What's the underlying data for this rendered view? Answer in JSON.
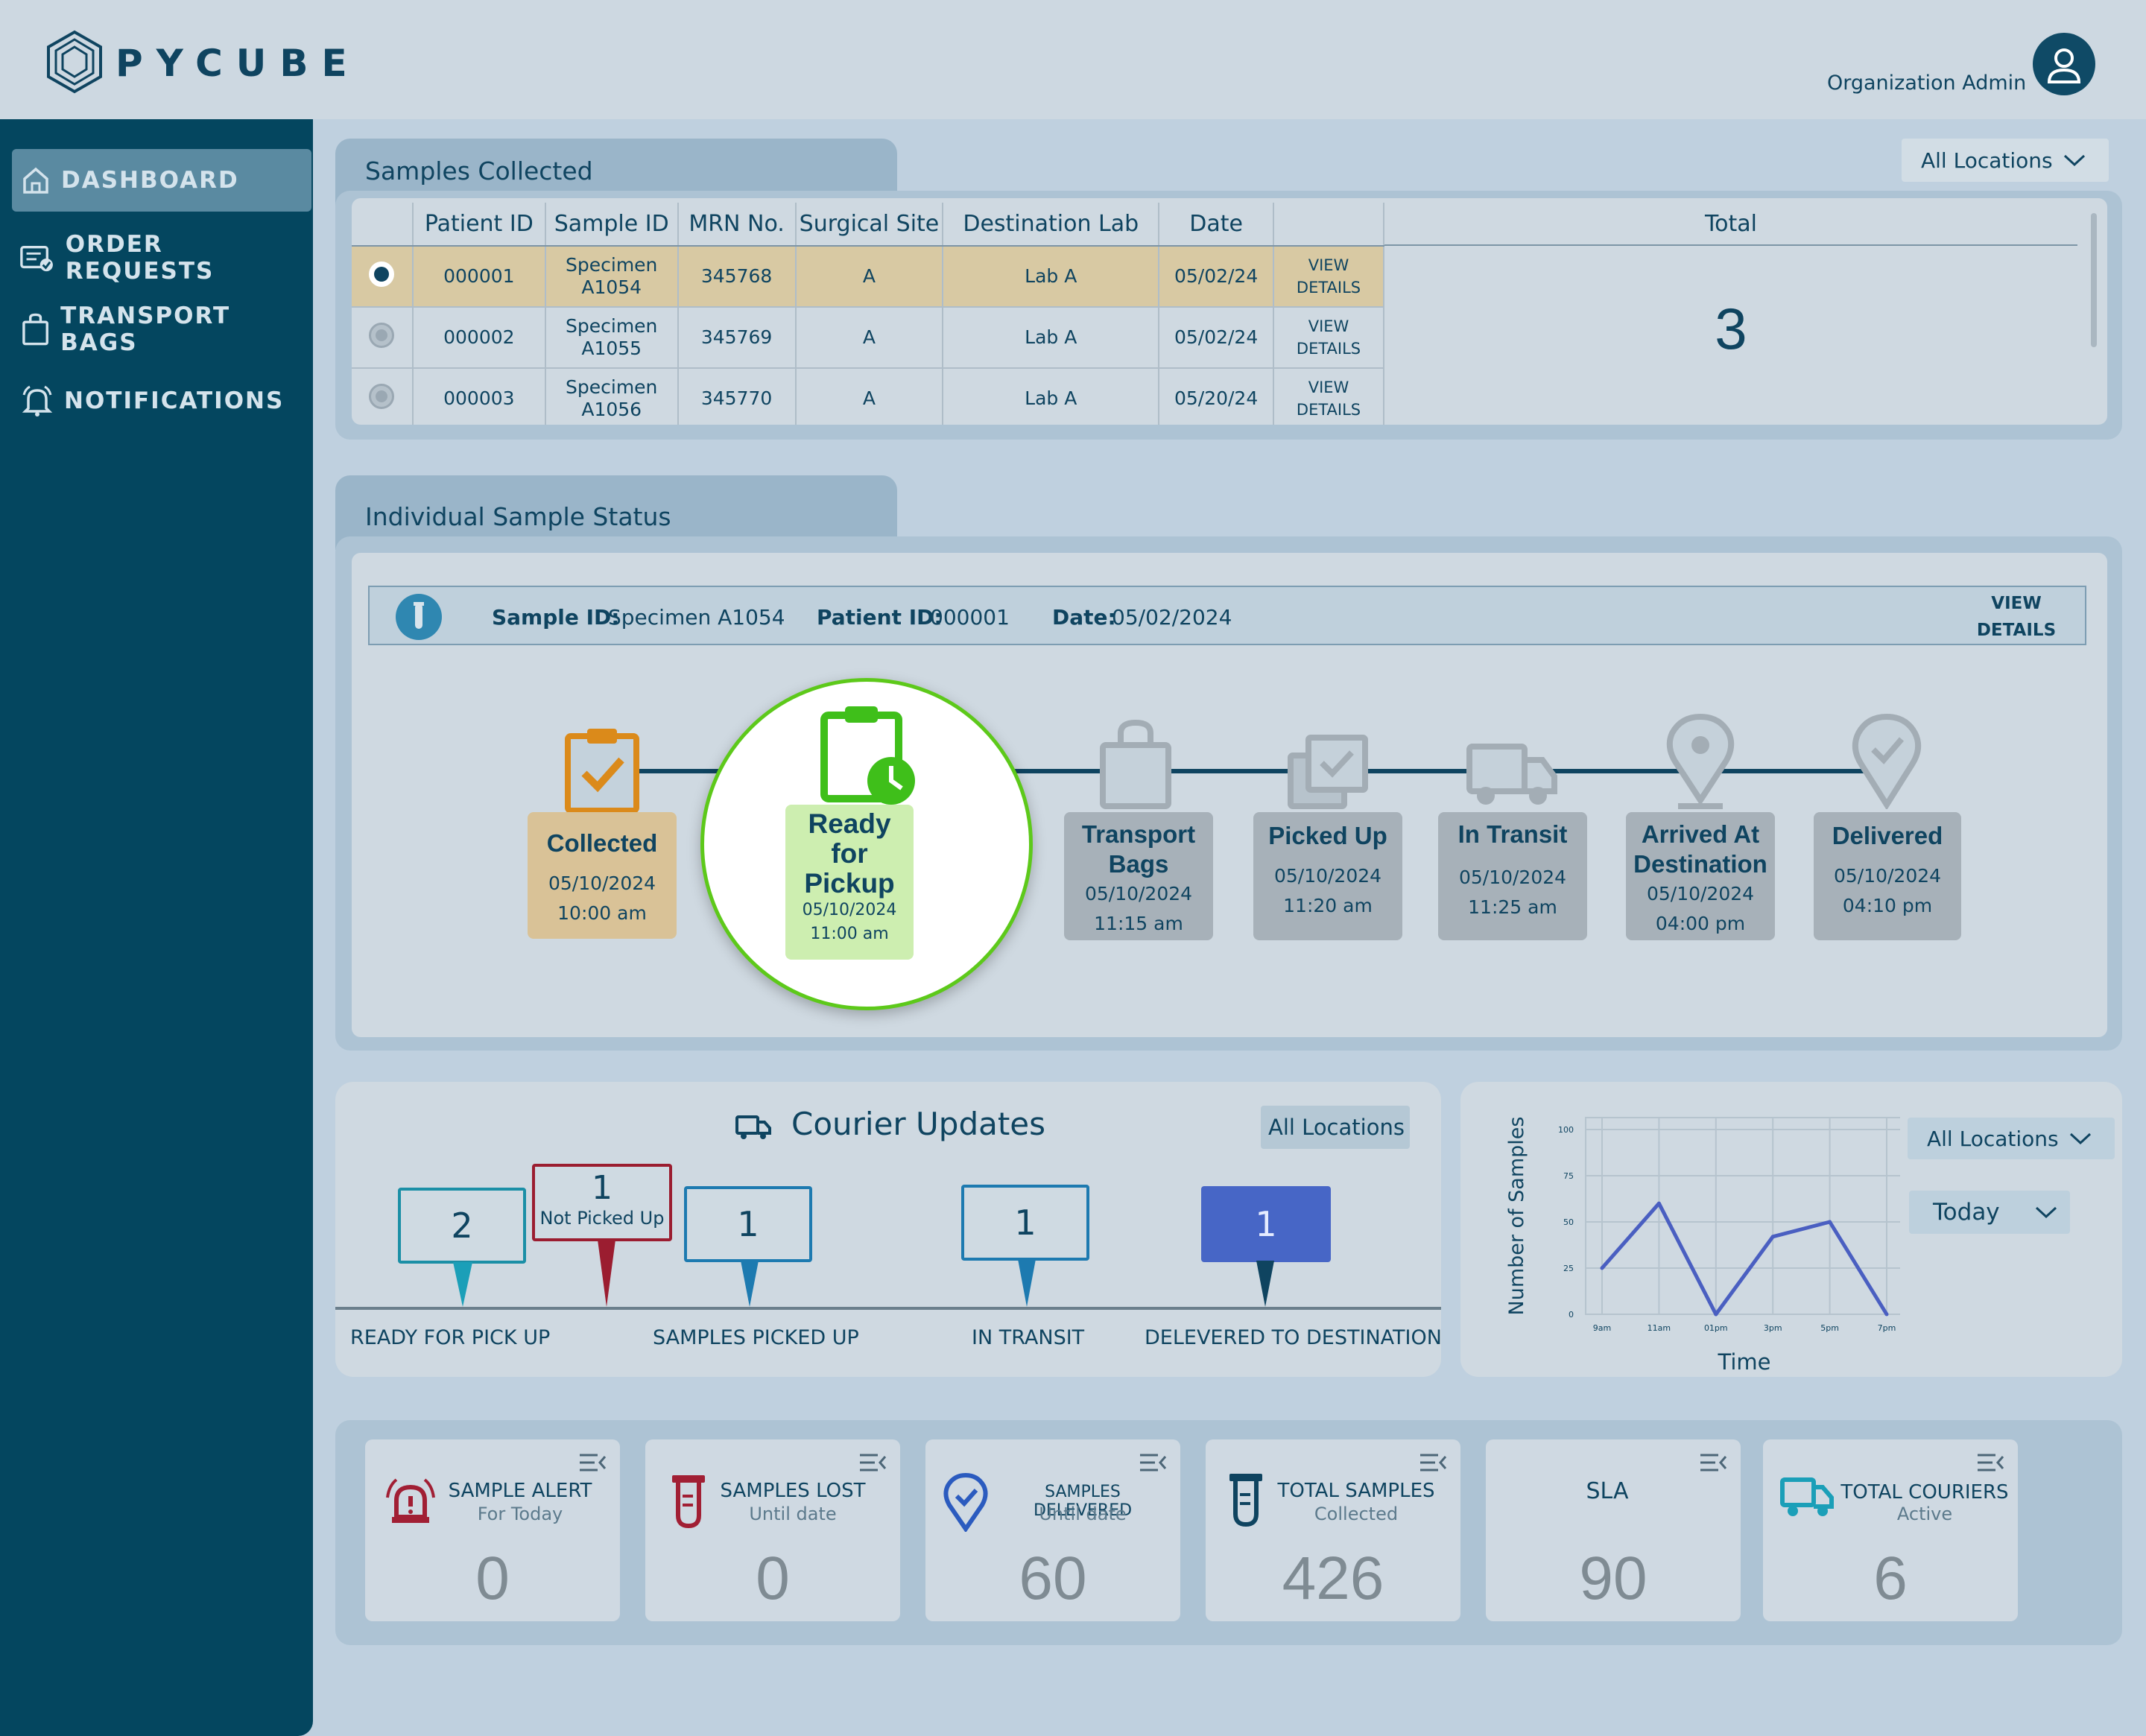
{
  "app": {
    "brand": "PYCUBE",
    "user_role": "Organization Admin"
  },
  "nav": [
    {
      "label": "DASHBOARD",
      "active": true,
      "icon": "home-icon"
    },
    {
      "label": "ORDER REQUESTS",
      "icon": "order-list-icon"
    },
    {
      "label": "TRANSPORT BAGS",
      "icon": "bag-icon"
    },
    {
      "label": "NOTIFICATIONS",
      "icon": "bell-icon"
    }
  ],
  "samples_collected": {
    "title": "Samples Collected",
    "location_filter": "All Locations",
    "columns": [
      "Patient ID",
      "Sample ID",
      "MRN No.",
      "Surgical Site",
      "Destination Lab",
      "Date",
      "",
      "Total"
    ],
    "rows": [
      {
        "patient_id": "000001",
        "sample_id_1": "Specimen",
        "sample_id_2": "A1054",
        "mrn": "345768",
        "site": "A",
        "lab": "Lab A",
        "date": "05/02/24",
        "action_1": "VIEW",
        "action_2": "DETAILS",
        "selected": true
      },
      {
        "patient_id": "000002",
        "sample_id_1": "Specimen",
        "sample_id_2": "A1055",
        "mrn": "345769",
        "site": "A",
        "lab": "Lab A",
        "date": "05/02/24",
        "action_1": "VIEW",
        "action_2": "DETAILS",
        "selected": false
      },
      {
        "patient_id": "000003",
        "sample_id_1": "Specimen",
        "sample_id_2": "A1056",
        "mrn": "345770",
        "site": "A",
        "lab": "Lab A",
        "date": "05/20/24",
        "action_1": "VIEW",
        "action_2": "DETAILS",
        "selected": false
      }
    ],
    "total": "3"
  },
  "sample_status": {
    "title": "Individual Sample Status",
    "sample_id_label": "Sample ID:",
    "sample_id": "Specimen A1054",
    "patient_id_label": "Patient ID:",
    "patient_id": "000001",
    "date_label": "Date:",
    "date": "05/02/2024",
    "view_1": "VIEW",
    "view_2": "DETAILS",
    "stages": [
      {
        "title": "Collected",
        "date": "05/10/2024",
        "time": "10:00 am"
      },
      {
        "title_1": "Ready",
        "title_2": "for",
        "title_3": "Pickup",
        "date": "05/10/2024",
        "time": "11:00 am"
      },
      {
        "title_1": "Transport",
        "title_2": "Bags",
        "date": "05/10/2024",
        "time": "11:15 am"
      },
      {
        "title": "Picked Up",
        "date": "05/10/2024",
        "time": "11:20 am"
      },
      {
        "title": "In Transit",
        "date": "05/10/2024",
        "time": "11:25 am"
      },
      {
        "title_1": "Arrived At",
        "title_2": "Destination",
        "date": "05/10/2024",
        "time": "04:00 pm"
      },
      {
        "title": "Delivered",
        "date": "05/10/2024",
        "time": "04:10 pm"
      }
    ]
  },
  "courier": {
    "title": "Courier Updates",
    "location_filter": "All Locations",
    "markers": [
      {
        "value": "2"
      },
      {
        "value": "1",
        "sub": "Not Picked Up"
      },
      {
        "value": "1"
      },
      {
        "value": "1"
      },
      {
        "value": "1"
      }
    ],
    "labels": [
      "READY FOR PICK UP",
      "SAMPLES PICKED UP",
      "IN TRANSIT",
      "DELEVERED TO DESTINATION"
    ]
  },
  "chart_filters": {
    "location": "All Locations",
    "period": "Today"
  },
  "chart_data": {
    "type": "line",
    "xlabel": "Time",
    "ylabel": "Number of Samples",
    "categories": [
      "9am",
      "11am",
      "01pm",
      "3pm",
      "5pm",
      "7pm"
    ],
    "x": [
      "9am",
      "11am",
      "01pm",
      "3pm",
      "5pm",
      "7pm"
    ],
    "values": [
      25,
      60,
      0,
      42,
      50,
      0
    ],
    "ylim": [
      0,
      100
    ],
    "yticks": [
      "0",
      "25",
      "50",
      "75",
      "100"
    ],
    "grid": true,
    "color": "#4a5fc1"
  },
  "stats": [
    {
      "title": "SAMPLE ALERT",
      "sub": "For Today",
      "value": "0",
      "icon": "alarm-icon"
    },
    {
      "title": "SAMPLES LOST",
      "sub": "Until date",
      "value": "0",
      "icon": "test-tube-icon"
    },
    {
      "title": "SAMPLES DELEVERED",
      "sub": "Until date",
      "value": "60",
      "icon": "location-check-icon"
    },
    {
      "title": "TOTAL SAMPLES",
      "sub": "Collected",
      "value": "426",
      "icon": "test-tube-icon"
    },
    {
      "title": "SLA",
      "sub": "",
      "value": "90",
      "icon": ""
    },
    {
      "title": "TOTAL COURIERS",
      "sub": "Active",
      "value": "6",
      "icon": "truck-icon"
    }
  ]
}
